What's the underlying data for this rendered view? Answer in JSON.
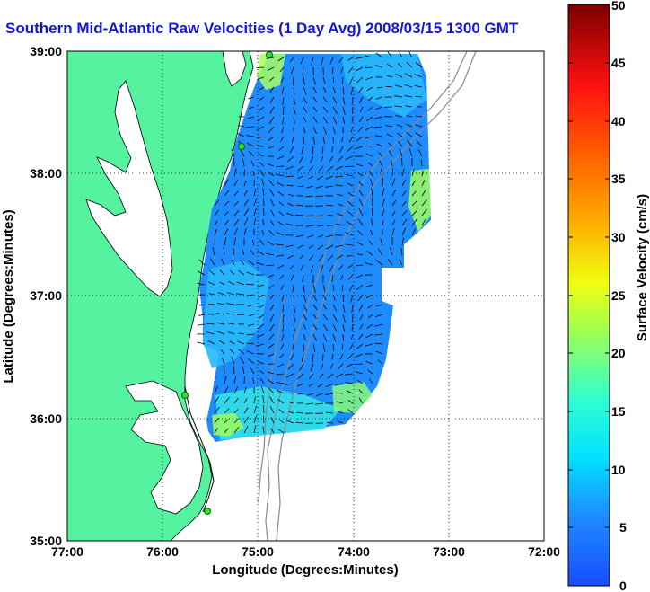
{
  "title": "Southern Mid-Atlantic Raw Velocities (1 Day Avg) 2008/03/15 1300 GMT",
  "map": {
    "xlabel": "Longitude (Degrees:Minutes)",
    "ylabel": "Latitude (Degrees:Minutes)",
    "x_ticks": [
      "77:00",
      "76:00",
      "75:00",
      "74:00",
      "73:00",
      "72:00"
    ],
    "y_ticks": [
      "39:00",
      "38:00",
      "37:00",
      "36:00",
      "35:00"
    ],
    "land_color": "#55f2a0",
    "grid": "dotted"
  },
  "colorbar": {
    "label": "Surface Velocity (cm/s)",
    "ticks": [
      "50",
      "45",
      "40",
      "35",
      "30",
      "25",
      "20",
      "15",
      "10",
      "5",
      "0"
    ],
    "min": 0,
    "max": 50
  }
}
